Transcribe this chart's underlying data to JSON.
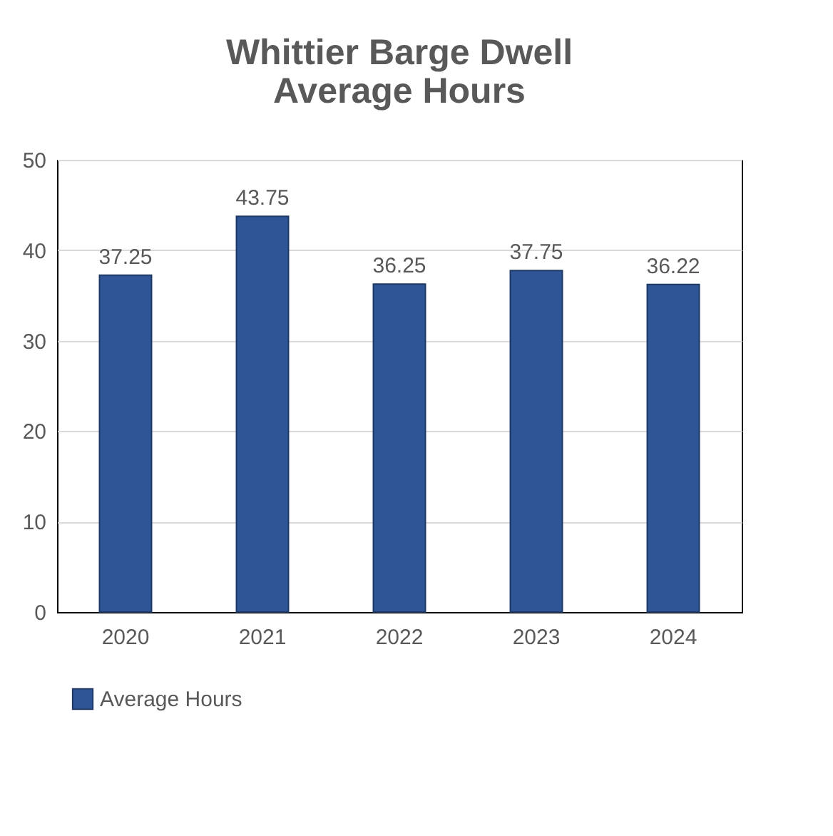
{
  "chart_data": {
    "type": "bar",
    "title": "Whittier Barge Dwell Average Hours",
    "categories": [
      "2020",
      "2021",
      "2022",
      "2023",
      "2024"
    ],
    "series": [
      {
        "name": "Average Hours",
        "color": "#2f5597",
        "values": [
          37.25,
          43.75,
          36.25,
          37.75,
          36.22
        ]
      }
    ],
    "ylim": [
      0,
      50
    ],
    "yticks": [
      0,
      10,
      20,
      30,
      40,
      50
    ],
    "grid": "y",
    "legend": "bottom",
    "data_labels": true
  }
}
